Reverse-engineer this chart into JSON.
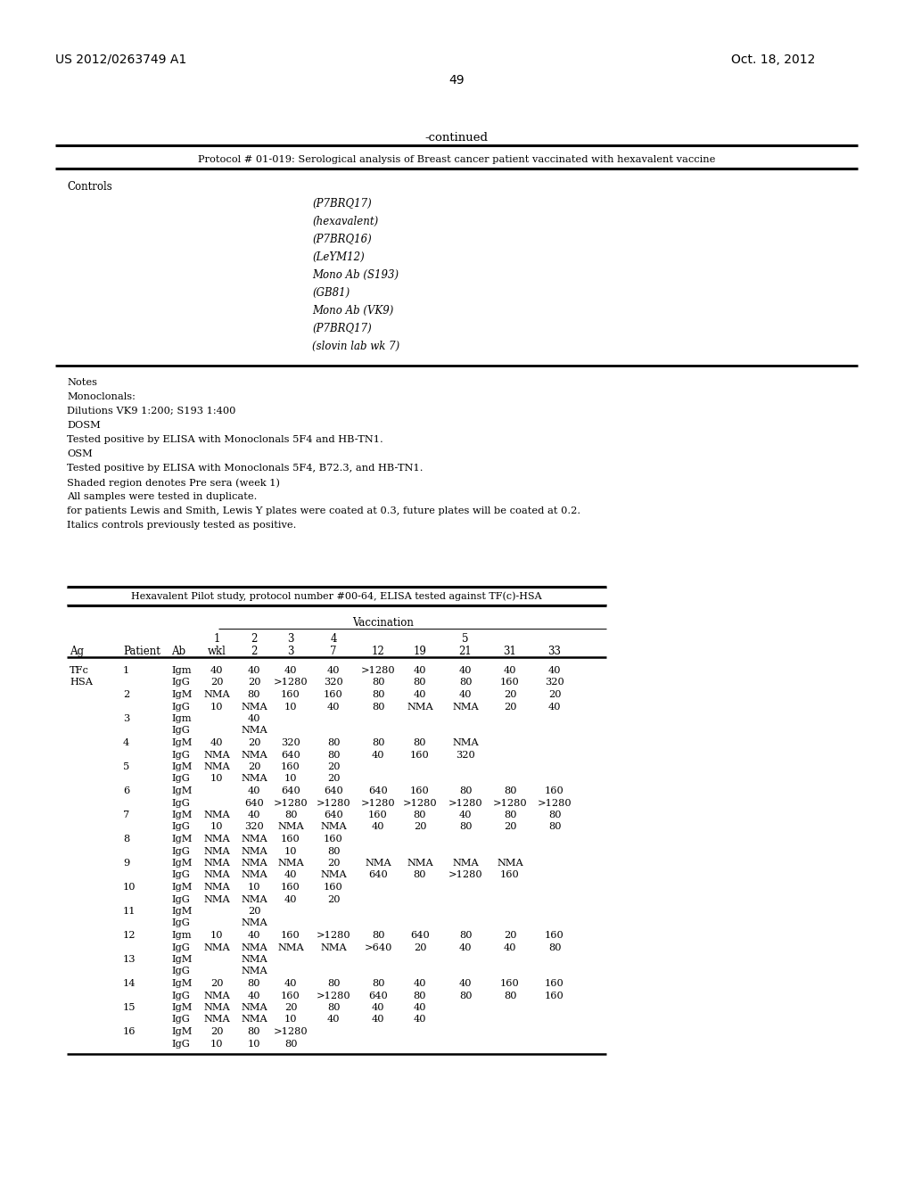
{
  "patent_number": "US 2012/0263749 A1",
  "patent_date": "Oct. 18, 2012",
  "page_number": "49",
  "continued_label": "-continued",
  "table1_title": "Protocol # 01-019: Serological analysis of Breast cancer patient vaccinated with hexavalent vaccine",
  "controls_label": "Controls",
  "controls_items": [
    "(P7BRQ17)",
    "(hexavalent)",
    "(P7BRQ16)",
    "(LeYM12)",
    "Mono Ab (S193)",
    "(GB81)",
    "Mono Ab (VK9)",
    "(P7BRQ17)",
    "(slovin lab wk 7)"
  ],
  "notes_lines": [
    "Notes",
    "Monoclonals:",
    "Dilutions VK9 1:200; S193 1:400",
    "DOSM",
    "Tested positive by ELISA with Monoclonals 5F4 and HB-TN1.",
    "OSM",
    "Tested positive by ELISA with Monoclonals 5F4, B72.3, and HB-TN1.",
    "Shaded region denotes Pre sera (week 1)",
    "All samples were tested in duplicate.",
    "for patients Lewis and Smith, Lewis Y plates were coated at 0.3, future plates will be coated at 0.2.",
    "Italics controls previously tested as positive."
  ],
  "table2_title": "Hexavalent Pilot study, protocol number #00-64, ELISA tested against TF(c)-HSA",
  "vaccination_label": "Vaccination",
  "table2_data": [
    [
      "TFc",
      "1",
      "Igm",
      "40",
      "40",
      "40",
      "40",
      ">1280",
      "40",
      "40",
      "40",
      "40"
    ],
    [
      "HSA",
      "",
      "IgG",
      "20",
      "20",
      ">1280",
      "320",
      "80",
      "80",
      "80",
      "160",
      "320"
    ],
    [
      "",
      "2",
      "IgM",
      "NMA",
      "80",
      "160",
      "160",
      "80",
      "40",
      "40",
      "20",
      "20"
    ],
    [
      "",
      "",
      "IgG",
      "10",
      "NMA",
      "10",
      "40",
      "80",
      "NMA",
      "NMA",
      "20",
      "40"
    ],
    [
      "",
      "3",
      "Igm",
      "",
      "40",
      "",
      "",
      "",
      "",
      "",
      "",
      ""
    ],
    [
      "",
      "",
      "IgG",
      "",
      "NMA",
      "",
      "",
      "",
      "",
      "",
      "",
      ""
    ],
    [
      "",
      "4",
      "IgM",
      "40",
      "20",
      "320",
      "80",
      "80",
      "80",
      "NMA",
      "",
      ""
    ],
    [
      "",
      "",
      "IgG",
      "NMA",
      "NMA",
      "640",
      "80",
      "40",
      "160",
      "320",
      "",
      ""
    ],
    [
      "",
      "5",
      "IgM",
      "NMA",
      "20",
      "160",
      "20",
      "",
      "",
      "",
      "",
      ""
    ],
    [
      "",
      "",
      "IgG",
      "10",
      "NMA",
      "10",
      "20",
      "",
      "",
      "",
      "",
      ""
    ],
    [
      "",
      "6",
      "IgM",
      "",
      "40",
      "640",
      "640",
      "640",
      "160",
      "80",
      "80",
      "160"
    ],
    [
      "",
      "",
      "IgG",
      "",
      "640",
      ">1280",
      ">1280",
      ">1280",
      ">1280",
      ">1280",
      ">1280",
      ">1280"
    ],
    [
      "",
      "7",
      "IgM",
      "NMA",
      "40",
      "80",
      "640",
      "160",
      "80",
      "40",
      "80",
      "80"
    ],
    [
      "",
      "",
      "IgG",
      "10",
      "320",
      "NMA",
      "NMA",
      "40",
      "20",
      "80",
      "20",
      "80"
    ],
    [
      "",
      "8",
      "IgM",
      "NMA",
      "NMA",
      "160",
      "160",
      "",
      "",
      "",
      "",
      ""
    ],
    [
      "",
      "",
      "IgG",
      "NMA",
      "NMA",
      "10",
      "80",
      "",
      "",
      "",
      "",
      ""
    ],
    [
      "",
      "9",
      "IgM",
      "NMA",
      "NMA",
      "NMA",
      "20",
      "NMA",
      "NMA",
      "NMA",
      "NMA",
      ""
    ],
    [
      "",
      "",
      "IgG",
      "NMA",
      "NMA",
      "40",
      "NMA",
      "640",
      "80",
      ">1280",
      "160",
      ""
    ],
    [
      "",
      "10",
      "IgM",
      "NMA",
      "10",
      "160",
      "160",
      "",
      "",
      "",
      "",
      ""
    ],
    [
      "",
      "",
      "IgG",
      "NMA",
      "NMA",
      "40",
      "20",
      "",
      "",
      "",
      "",
      ""
    ],
    [
      "",
      "11",
      "IgM",
      "",
      "20",
      "",
      "",
      "",
      "",
      "",
      "",
      ""
    ],
    [
      "",
      "",
      "IgG",
      "",
      "NMA",
      "",
      "",
      "",
      "",
      "",
      "",
      ""
    ],
    [
      "",
      "12",
      "Igm",
      "10",
      "40",
      "160",
      ">1280",
      "80",
      "640",
      "80",
      "20",
      "160"
    ],
    [
      "",
      "",
      "IgG",
      "NMA",
      "NMA",
      "NMA",
      "NMA",
      ">640",
      "20",
      "40",
      "40",
      "80"
    ],
    [
      "",
      "13",
      "IgM",
      "",
      "NMA",
      "",
      "",
      "",
      "",
      "",
      "",
      ""
    ],
    [
      "",
      "",
      "IgG",
      "",
      "NMA",
      "",
      "",
      "",
      "",
      "",
      "",
      ""
    ],
    [
      "",
      "14",
      "IgM",
      "20",
      "80",
      "40",
      "80",
      "80",
      "40",
      "40",
      "160",
      "160"
    ],
    [
      "",
      "",
      "IgG",
      "NMA",
      "40",
      "160",
      ">1280",
      "640",
      "80",
      "80",
      "80",
      "160"
    ],
    [
      "",
      "15",
      "IgM",
      "NMA",
      "NMA",
      "20",
      "80",
      "40",
      "40",
      "",
      "",
      ""
    ],
    [
      "",
      "",
      "IgG",
      "NMA",
      "NMA",
      "10",
      "40",
      "40",
      "40",
      "",
      "",
      ""
    ],
    [
      "",
      "16",
      "IgM",
      "20",
      "80",
      ">1280",
      "",
      "",
      "",
      "",
      "",
      ""
    ],
    [
      "",
      "",
      "IgG",
      "10",
      "10",
      "80",
      "",
      "",
      "",
      "",
      "",
      ""
    ]
  ]
}
